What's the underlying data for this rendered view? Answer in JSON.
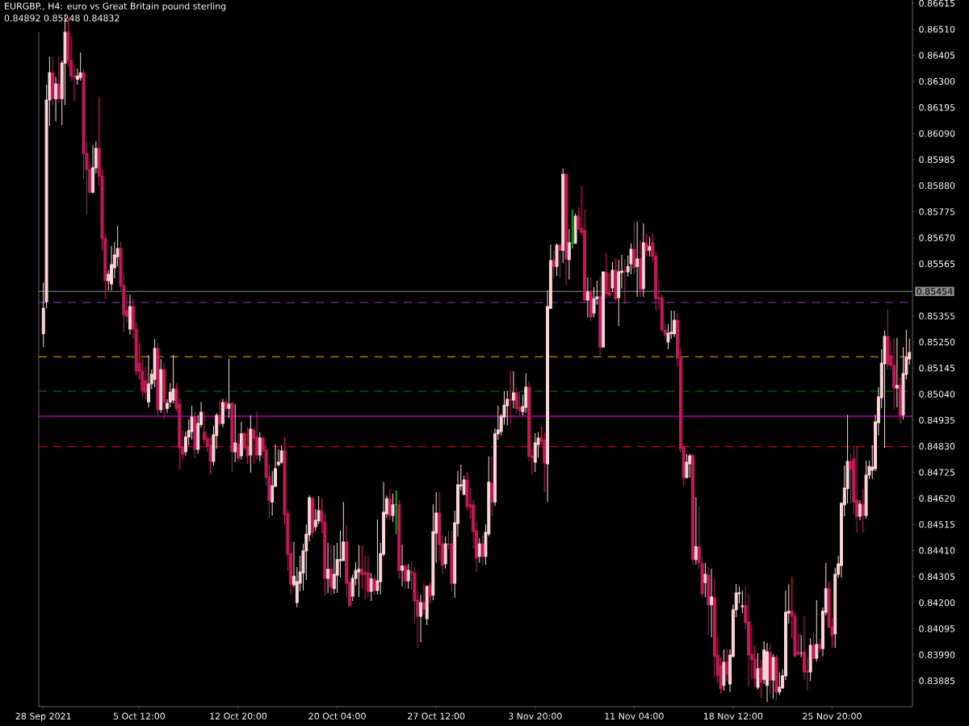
{
  "chart_data": {
    "type": "candlestick",
    "title": "EURGBP., H4:  euro vs Great Britain pound sterling",
    "subtitle": "0.84892 0.85248 0.84832",
    "categories": [
      "28 Sep 2021",
      null,
      null,
      null,
      null,
      null,
      null,
      null,
      null,
      null,
      null,
      null,
      null,
      null,
      null,
      null,
      null,
      null,
      null,
      null,
      null,
      null,
      null,
      null,
      null,
      null,
      null,
      null,
      null,
      null,
      null,
      "5 Oct 12:00",
      null,
      null,
      null,
      null,
      null,
      null,
      null,
      null,
      null,
      null,
      null,
      null,
      null,
      null,
      null,
      null,
      null,
      null,
      null,
      null,
      null,
      null,
      null,
      null,
      null,
      null,
      null,
      null,
      null,
      null,
      null,
      "12 Oct 20:00",
      null,
      null,
      null,
      null,
      null,
      null,
      null,
      null,
      null,
      null,
      null,
      null,
      null,
      null,
      null,
      null,
      null,
      null,
      null,
      null,
      null,
      null,
      null,
      null,
      null,
      null,
      null,
      null,
      null,
      null,
      null,
      "20 Oct 04:00",
      null,
      null,
      null,
      null,
      null,
      null,
      null,
      null,
      null,
      null,
      null,
      null,
      null,
      null,
      null,
      null,
      null,
      null,
      null,
      null,
      null,
      null,
      null,
      null,
      null,
      null,
      null,
      null,
      null,
      null,
      null,
      "27 Oct 12:00",
      null,
      null,
      null,
      null,
      null,
      null,
      null,
      null,
      null,
      null,
      null,
      null,
      null,
      null,
      null,
      null,
      null,
      null,
      null,
      null,
      null,
      null,
      null,
      null,
      null,
      null,
      null,
      null,
      null,
      null,
      null,
      "3 Nov 20:00",
      null,
      null,
      null,
      null,
      null,
      null,
      null,
      null,
      null,
      null,
      null,
      null,
      null,
      null,
      null,
      null,
      null,
      null,
      null,
      null,
      null,
      null,
      null,
      null,
      null,
      null,
      null,
      null,
      null,
      null,
      null,
      "11 Nov 04:00",
      null,
      null,
      null,
      null,
      null,
      null,
      null,
      null,
      null,
      null,
      null,
      null,
      null,
      null,
      null,
      null,
      null,
      null,
      null,
      null,
      null,
      null,
      null,
      null,
      null,
      null,
      null,
      null,
      null,
      null,
      null,
      "18 Nov 12:00",
      null,
      null,
      null,
      null,
      null,
      null,
      null,
      null,
      null,
      null,
      null,
      null,
      null,
      null,
      null,
      null,
      null,
      null,
      null,
      null,
      null,
      null,
      null,
      null,
      null,
      null,
      null,
      null,
      null,
      null,
      null,
      "25 Nov 20:00",
      null,
      null,
      null,
      null,
      null,
      null,
      null,
      null,
      null,
      null,
      null,
      null,
      null,
      null,
      null,
      null,
      null,
      null,
      null,
      null,
      null,
      null,
      null,
      null,
      null
    ],
    "ohlc": [
      [
        0.85283,
        0.8549,
        0.8523,
        0.85386
      ],
      [
        0.85412,
        0.86287,
        0.85386,
        0.86225
      ],
      [
        0.86225,
        0.864,
        0.86121,
        0.86335
      ],
      [
        0.86335,
        0.864,
        0.86205,
        0.86231
      ],
      [
        0.86231,
        0.86319,
        0.8614,
        0.8629
      ],
      [
        0.8629,
        0.864,
        0.86212,
        0.86231
      ],
      [
        0.86231,
        0.86384,
        0.86124,
        0.86374
      ],
      [
        0.86374,
        0.86569,
        0.86205,
        0.86498
      ],
      [
        0.86498,
        0.86556,
        0.86361,
        0.86384
      ],
      [
        0.86384,
        0.86482,
        0.86303,
        0.86322
      ],
      [
        0.86322,
        0.86368,
        0.86222,
        0.86316
      ],
      [
        0.86309,
        0.86352,
        0.86287,
        0.86322
      ],
      [
        0.86316,
        0.86417,
        0.86303,
        0.86335
      ],
      [
        0.86335,
        0.86352,
        0.85906,
        0.8601
      ],
      [
        0.8601,
        0.86059,
        0.85763,
        0.85945
      ],
      [
        0.85945,
        0.85978,
        0.85848,
        0.85854
      ],
      [
        0.85854,
        0.86043,
        0.85848,
        0.85952
      ],
      [
        0.85952,
        0.86059,
        0.85929,
        0.8603
      ],
      [
        0.8603,
        0.86238,
        0.8588,
        0.85919
      ],
      [
        0.85919,
        0.85945,
        0.8562,
        0.85666
      ],
      [
        0.85666,
        0.85685,
        0.85425,
        0.85497
      ],
      [
        0.85497,
        0.85539,
        0.85458,
        0.85523
      ],
      [
        0.85484,
        0.85637,
        0.85458,
        0.85562
      ],
      [
        0.85549,
        0.85653,
        0.85507,
        0.85601
      ],
      [
        0.85594,
        0.85718,
        0.85555,
        0.85627
      ],
      [
        0.85627,
        0.85653,
        0.85458,
        0.85477
      ],
      [
        0.85477,
        0.85523,
        0.85289,
        0.8536
      ],
      [
        0.85377,
        0.85442,
        0.85328,
        0.85354
      ],
      [
        0.85302,
        0.85442,
        0.85279,
        0.85393
      ],
      [
        0.85393,
        0.85425,
        0.85263,
        0.85302
      ],
      [
        0.85302,
        0.85328,
        0.85117,
        0.85133
      ],
      [
        0.85165,
        0.85247,
        0.851,
        0.85133
      ],
      [
        0.85133,
        0.85182,
        0.85029,
        0.85055
      ],
      [
        0.85094,
        0.85149,
        0.85019,
        0.85048
      ],
      [
        0.85009,
        0.85198,
        0.84987,
        0.85081
      ],
      [
        0.85081,
        0.85139,
        0.85061,
        0.8512
      ],
      [
        0.851,
        0.85263,
        0.85068,
        0.85224
      ],
      [
        0.85224,
        0.85247,
        0.84954,
        0.84977
      ],
      [
        0.84977,
        0.85182,
        0.84964,
        0.85139
      ],
      [
        0.85139,
        0.85165,
        0.84938,
        0.85009
      ],
      [
        0.84983,
        0.85019,
        0.84964,
        0.85003
      ],
      [
        0.85009,
        0.85084,
        0.84987,
        0.85048
      ],
      [
        0.85016,
        0.85198,
        0.85003,
        0.85061
      ],
      [
        0.85061,
        0.85084,
        0.8497,
        0.84983
      ],
      [
        0.85,
        0.85022,
        0.84737,
        0.84824
      ],
      [
        0.84828,
        0.84893,
        0.84776,
        0.84798
      ],
      [
        0.84808,
        0.84889,
        0.84792,
        0.84867
      ],
      [
        0.84867,
        0.84938,
        0.84834,
        0.84893
      ],
      [
        0.84889,
        0.84993,
        0.84857,
        0.84948
      ],
      [
        0.84948,
        0.8497,
        0.84782,
        0.84818
      ],
      [
        0.84818,
        0.84954,
        0.84801,
        0.84922
      ],
      [
        0.84918,
        0.85009,
        0.84906,
        0.84967
      ],
      [
        0.84886,
        0.8497,
        0.8484,
        0.84857
      ],
      [
        0.8486,
        0.84873,
        0.84808,
        0.84831
      ],
      [
        0.84834,
        0.84867,
        0.84717,
        0.84769
      ],
      [
        0.84769,
        0.84912,
        0.84753,
        0.84876
      ],
      [
        0.84873,
        0.84964,
        0.84821,
        0.84954
      ],
      [
        0.84954,
        0.85016,
        0.84912,
        0.84922
      ],
      [
        0.84922,
        0.85022,
        0.84906,
        0.85006
      ],
      [
        0.85006,
        0.85022,
        0.8497,
        0.84983
      ],
      [
        0.84983,
        0.85182,
        0.84944,
        0.85
      ],
      [
        0.85003,
        0.85009,
        0.84727,
        0.84808
      ],
      [
        0.84808,
        0.85,
        0.84766,
        0.84844
      ],
      [
        0.8484,
        0.84883,
        0.84766,
        0.84782
      ],
      [
        0.84792,
        0.84928,
        0.84776,
        0.8488
      ],
      [
        0.8488,
        0.84889,
        0.84815,
        0.84824
      ],
      [
        0.84828,
        0.84906,
        0.84759,
        0.84792
      ],
      [
        0.84795,
        0.84954,
        0.84724,
        0.84899
      ],
      [
        0.84896,
        0.84902,
        0.84759,
        0.84863
      ],
      [
        0.84867,
        0.8497,
        0.84776,
        0.84795
      ],
      [
        0.84795,
        0.84886,
        0.84769,
        0.84863
      ],
      [
        0.84863,
        0.84873,
        0.84782,
        0.84811
      ],
      [
        0.84815,
        0.84837,
        0.84671,
        0.84704
      ],
      [
        0.84707,
        0.84756,
        0.84541,
        0.8461
      ],
      [
        0.84606,
        0.8473,
        0.84551,
        0.84671
      ],
      [
        0.84668,
        0.84837,
        0.84668,
        0.8474
      ],
      [
        0.84756,
        0.84818,
        0.84749,
        0.84766
      ],
      [
        0.84766,
        0.84834,
        0.84759,
        0.84811
      ],
      [
        0.84811,
        0.84867,
        0.84515,
        0.84555
      ],
      [
        0.84558,
        0.84571,
        0.8433,
        0.84395
      ],
      [
        0.84398,
        0.84444,
        0.84233,
        0.84275
      ],
      [
        0.84272,
        0.84444,
        0.84262,
        0.84307
      ],
      [
        0.842,
        0.84343,
        0.84181,
        0.84285
      ],
      [
        0.84278,
        0.84389,
        0.84246,
        0.84324
      ],
      [
        0.8432,
        0.84437,
        0.84249,
        0.84408
      ],
      [
        0.84408,
        0.84515,
        0.84291,
        0.84476
      ],
      [
        0.84473,
        0.84632,
        0.84447,
        0.84623
      ],
      [
        0.84619,
        0.84626,
        0.8446,
        0.84483
      ],
      [
        0.84506,
        0.84577,
        0.8449,
        0.84532
      ],
      [
        0.84529,
        0.84629,
        0.84515,
        0.84571
      ],
      [
        0.84571,
        0.84619,
        0.8448,
        0.84525
      ],
      [
        0.84525,
        0.84558,
        0.8423,
        0.84298
      ],
      [
        0.84298,
        0.84441,
        0.84239,
        0.84334
      ],
      [
        0.84334,
        0.84434,
        0.8423,
        0.84262
      ],
      [
        0.84256,
        0.84431,
        0.84236,
        0.84314
      ],
      [
        0.84311,
        0.84441,
        0.84239,
        0.84373
      ],
      [
        0.84369,
        0.8449,
        0.84301,
        0.84373
      ],
      [
        0.84369,
        0.84606,
        0.84369,
        0.84444
      ],
      [
        0.84444,
        0.84512,
        0.8422,
        0.84278
      ],
      [
        0.84281,
        0.84301,
        0.84187,
        0.84187
      ],
      [
        0.84226,
        0.84314,
        0.84207,
        0.84298
      ],
      [
        0.84298,
        0.84363,
        0.84269,
        0.8433
      ],
      [
        0.84324,
        0.84431,
        0.84223,
        0.84334
      ],
      [
        0.84334,
        0.84431,
        0.84256,
        0.84314
      ],
      [
        0.8432,
        0.84389,
        0.84213,
        0.84314
      ],
      [
        0.8432,
        0.84386,
        0.84223,
        0.84246
      ],
      [
        0.84246,
        0.8432,
        0.84207,
        0.84295
      ],
      [
        0.84295,
        0.84314,
        0.84233,
        0.84249
      ],
      [
        0.84249,
        0.84535,
        0.84233,
        0.84288
      ],
      [
        0.84285,
        0.84441,
        0.84233,
        0.84398
      ],
      [
        0.84395,
        0.84685,
        0.84386,
        0.84564
      ],
      [
        0.84558,
        0.84632,
        0.84541,
        0.84619
      ],
      [
        0.84619,
        0.84659,
        0.84532,
        0.84551
      ],
      [
        0.84551,
        0.84639,
        0.84525,
        0.84594
      ],
      [
        0.84594,
        0.84652,
        0.84477,
        0.84594
      ],
      [
        0.84594,
        0.84613,
        0.84295,
        0.8433
      ],
      [
        0.8433,
        0.84434,
        0.84265,
        0.84347
      ],
      [
        0.84347,
        0.84356,
        0.84256,
        0.84288
      ],
      [
        0.84288,
        0.84356,
        0.84256,
        0.8433
      ],
      [
        0.84324,
        0.84366,
        0.84252,
        0.8432
      ],
      [
        0.8432,
        0.84343,
        0.84116,
        0.84207
      ],
      [
        0.8421,
        0.84249,
        0.84018,
        0.84145
      ],
      [
        0.84145,
        0.84233,
        0.84041,
        0.842
      ],
      [
        0.842,
        0.84281,
        0.84152,
        0.84174
      ],
      [
        0.84135,
        0.84269,
        0.84109,
        0.84265
      ],
      [
        0.84269,
        0.84281,
        0.84197,
        0.84226
      ],
      [
        0.8423,
        0.84597,
        0.8421,
        0.84486
      ],
      [
        0.8448,
        0.84645,
        0.84363,
        0.84561
      ],
      [
        0.84561,
        0.84645,
        0.84369,
        0.84434
      ],
      [
        0.84437,
        0.84473,
        0.84314,
        0.8435
      ],
      [
        0.84356,
        0.84467,
        0.84337,
        0.84437
      ],
      [
        0.84437,
        0.8449,
        0.84415,
        0.84434
      ],
      [
        0.84437,
        0.8449,
        0.84243,
        0.84278
      ],
      [
        0.84278,
        0.84571,
        0.8422,
        0.84522
      ],
      [
        0.84519,
        0.8473,
        0.84467,
        0.84675
      ],
      [
        0.84671,
        0.84756,
        0.84652,
        0.84675
      ],
      [
        0.84636,
        0.84711,
        0.84636,
        0.84694
      ],
      [
        0.84694,
        0.84724,
        0.84571,
        0.84587
      ],
      [
        0.84594,
        0.84662,
        0.84538,
        0.84587
      ],
      [
        0.84594,
        0.84613,
        0.84418,
        0.84486
      ],
      [
        0.8449,
        0.84529,
        0.84324,
        0.84379
      ],
      [
        0.84386,
        0.8446,
        0.8436,
        0.84437
      ],
      [
        0.84437,
        0.8447,
        0.84353,
        0.84386
      ],
      [
        0.84386,
        0.84515,
        0.84353,
        0.84483
      ],
      [
        0.84477,
        0.84789,
        0.84467,
        0.84685
      ],
      [
        0.84681,
        0.84789,
        0.84548,
        0.84606
      ],
      [
        0.84606,
        0.84902,
        0.8459,
        0.8488
      ],
      [
        0.8488,
        0.84993,
        0.84857,
        0.84896
      ],
      [
        0.84889,
        0.84961,
        0.84873,
        0.84951
      ],
      [
        0.84948,
        0.85052,
        0.84918,
        0.84996
      ],
      [
        0.84993,
        0.85052,
        0.84915,
        0.85019
      ],
      [
        0.85019,
        0.85133,
        0.84922,
        0.85016
      ],
      [
        0.85016,
        0.85133,
        0.84983,
        0.85045
      ],
      [
        0.85045,
        0.85068,
        0.84961,
        0.84983
      ],
      [
        0.84987,
        0.85052,
        0.84954,
        0.84974
      ],
      [
        0.8497,
        0.85039,
        0.84954,
        0.8499
      ],
      [
        0.84987,
        0.85123,
        0.84964,
        0.85068
      ],
      [
        0.85068,
        0.85091,
        0.84769,
        0.84789
      ],
      [
        0.84792,
        0.84818,
        0.84717,
        0.84785
      ],
      [
        0.84766,
        0.84883,
        0.84727,
        0.84844
      ],
      [
        0.84837,
        0.84886,
        0.84785,
        0.84863
      ],
      [
        0.84863,
        0.84909,
        0.84834,
        0.8485
      ],
      [
        0.84854,
        0.84886,
        0.84645,
        0.84762
      ],
      [
        0.84759,
        0.85458,
        0.84606,
        0.85393
      ],
      [
        0.85386,
        0.85643,
        0.85383,
        0.85578
      ],
      [
        0.85578,
        0.85617,
        0.85507,
        0.85555
      ],
      [
        0.85555,
        0.85647,
        0.85516,
        0.8564
      ],
      [
        0.8564,
        0.85647,
        0.85507,
        0.8562
      ],
      [
        0.8562,
        0.85949,
        0.85568,
        0.85926
      ],
      [
        0.85926,
        0.85929,
        0.85481,
        0.85585
      ],
      [
        0.85582,
        0.85705,
        0.85503,
        0.8565
      ],
      [
        0.8565,
        0.85783,
        0.85627,
        0.8565
      ],
      [
        0.85647,
        0.85767,
        0.85647,
        0.85757
      ],
      [
        0.85757,
        0.85793,
        0.85702,
        0.85705
      ],
      [
        0.85708,
        0.8588,
        0.85679,
        0.85692
      ],
      [
        0.85699,
        0.85783,
        0.85412,
        0.85419
      ],
      [
        0.85419,
        0.8551,
        0.85348,
        0.85452
      ],
      [
        0.85452,
        0.8551,
        0.85335,
        0.85351
      ],
      [
        0.85367,
        0.85471,
        0.85351,
        0.85425
      ],
      [
        0.85425,
        0.85497,
        0.854,
        0.85432
      ],
      [
        0.85432,
        0.85513,
        0.85198,
        0.8523
      ],
      [
        0.8523,
        0.85533,
        0.8523,
        0.85533
      ],
      [
        0.8553,
        0.85608,
        0.85425,
        0.85445
      ],
      [
        0.85448,
        0.85526,
        0.85432,
        0.85439
      ],
      [
        0.85468,
        0.85572,
        0.85452,
        0.85539
      ],
      [
        0.85539,
        0.85588,
        0.85416,
        0.85425
      ],
      [
        0.85429,
        0.85582,
        0.85315,
        0.85533
      ],
      [
        0.8553,
        0.85601,
        0.85465,
        0.85536
      ],
      [
        0.85536,
        0.85585,
        0.85403,
        0.85533
      ],
      [
        0.85533,
        0.85598,
        0.85513,
        0.85555
      ],
      [
        0.85565,
        0.85647,
        0.85523,
        0.85624
      ],
      [
        0.85624,
        0.85731,
        0.85523,
        0.85549
      ],
      [
        0.85555,
        0.85734,
        0.85432,
        0.85585
      ],
      [
        0.85585,
        0.8566,
        0.85432,
        0.85461
      ],
      [
        0.85465,
        0.85728,
        0.85432,
        0.8565
      ],
      [
        0.85647,
        0.85686,
        0.85595,
        0.85617
      ],
      [
        0.8562,
        0.85673,
        0.85595,
        0.85634
      ],
      [
        0.8565,
        0.85686,
        0.85572,
        0.85595
      ],
      [
        0.85595,
        0.85614,
        0.85377,
        0.85425
      ],
      [
        0.85429,
        0.85503,
        0.8538,
        0.85425
      ],
      [
        0.85429,
        0.85442,
        0.85289,
        0.85299
      ],
      [
        0.85299,
        0.85322,
        0.85263,
        0.85279
      ],
      [
        0.8525,
        0.85322,
        0.85221,
        0.85286
      ],
      [
        0.85283,
        0.85377,
        0.85263,
        0.85289
      ],
      [
        0.85283,
        0.85377,
        0.8527,
        0.85338
      ],
      [
        0.85338,
        0.85367,
        0.85149,
        0.85185
      ],
      [
        0.85185,
        0.85224,
        0.84808,
        0.84821
      ],
      [
        0.84828,
        0.84834,
        0.84671,
        0.84704
      ],
      [
        0.84704,
        0.84798,
        0.84701,
        0.84766
      ],
      [
        0.84759,
        0.84798,
        0.84704,
        0.84792
      ],
      [
        0.84792,
        0.84798,
        0.84353,
        0.84373
      ],
      [
        0.84373,
        0.84626,
        0.84353,
        0.84425
      ],
      [
        0.84425,
        0.84587,
        0.84337,
        0.8436
      ],
      [
        0.84356,
        0.84386,
        0.84223,
        0.84236
      ],
      [
        0.84281,
        0.8436,
        0.84223,
        0.84314
      ],
      [
        0.84311,
        0.84343,
        0.8407,
        0.84191
      ],
      [
        0.84191,
        0.84337,
        0.8406,
        0.84223
      ],
      [
        0.8422,
        0.84295,
        0.83898,
        0.83983
      ],
      [
        0.83989,
        0.8406,
        0.83875,
        0.83905
      ],
      [
        0.83947,
        0.83979,
        0.83833,
        0.83853
      ],
      [
        0.83866,
        0.84012,
        0.83846,
        0.8396
      ],
      [
        0.8396,
        0.84012,
        0.83882,
        0.83911
      ],
      [
        0.83872,
        0.84012,
        0.8384,
        0.83989
      ],
      [
        0.83983,
        0.84191,
        0.83979,
        0.84171
      ],
      [
        0.84171,
        0.84275,
        0.84142,
        0.84239
      ],
      [
        0.84236,
        0.84265,
        0.84197,
        0.84239
      ],
      [
        0.84184,
        0.84249,
        0.84158,
        0.84187
      ],
      [
        0.84187,
        0.84265,
        0.84093,
        0.84119
      ],
      [
        0.84122,
        0.84236,
        0.83862,
        0.83989
      ],
      [
        0.83992,
        0.84109,
        0.83891,
        0.8397
      ],
      [
        0.83973,
        0.84028,
        0.83859,
        0.83895
      ],
      [
        0.83859,
        0.83996,
        0.83849,
        0.83934
      ],
      [
        0.83937,
        0.8397,
        0.83817,
        0.83879
      ],
      [
        0.83891,
        0.84044,
        0.83872,
        0.84009
      ],
      [
        0.83866,
        0.84038,
        0.838,
        0.84002
      ],
      [
        0.83999,
        0.84031,
        0.83833,
        0.83888
      ],
      [
        0.83888,
        0.83992,
        0.83814,
        0.83979
      ],
      [
        0.83979,
        0.83989,
        0.83807,
        0.8384
      ],
      [
        0.8384,
        0.83918,
        0.83827,
        0.83859
      ],
      [
        0.83856,
        0.83931,
        0.83856,
        0.83905
      ],
      [
        0.83905,
        0.84249,
        0.83888,
        0.84161
      ],
      [
        0.84158,
        0.84275,
        0.84116,
        0.84165
      ],
      [
        0.84165,
        0.84304,
        0.84057,
        0.84145
      ],
      [
        0.84145,
        0.84158,
        0.83979,
        0.83986
      ],
      [
        0.84002,
        0.84077,
        0.83989,
        0.83992
      ],
      [
        0.83996,
        0.8407,
        0.83979,
        0.83996
      ],
      [
        0.84002,
        0.84145,
        0.83888,
        0.83921
      ],
      [
        0.83924,
        0.83983,
        0.83846,
        0.83921
      ],
      [
        0.83921,
        0.84057,
        0.83885,
        0.84028
      ],
      [
        0.84028,
        0.8408,
        0.8397,
        0.83976
      ],
      [
        0.83976,
        0.8421,
        0.83963,
        0.84031
      ],
      [
        0.84031,
        0.84054,
        0.83999,
        0.84015
      ],
      [
        0.84015,
        0.84181,
        0.83983,
        0.84165
      ],
      [
        0.84161,
        0.8436,
        0.84148,
        0.84256
      ],
      [
        0.84256,
        0.84285,
        0.841,
        0.841
      ],
      [
        0.84103,
        0.84139,
        0.84018,
        0.84067
      ],
      [
        0.84074,
        0.8434,
        0.84018,
        0.84314
      ],
      [
        0.84314,
        0.84389,
        0.84301,
        0.84356
      ],
      [
        0.8435,
        0.84606,
        0.84301,
        0.846
      ],
      [
        0.84594,
        0.84753,
        0.84548,
        0.84662
      ],
      [
        0.84659,
        0.84957,
        0.846,
        0.84769
      ],
      [
        0.84769,
        0.84798,
        0.846,
        0.84737
      ],
      [
        0.84779,
        0.84834,
        0.84555,
        0.84606
      ],
      [
        0.84613,
        0.84831,
        0.84483,
        0.84548
      ],
      [
        0.84548,
        0.84613,
        0.84532,
        0.84597
      ],
      [
        0.84594,
        0.84659,
        0.84483,
        0.84551
      ],
      [
        0.84551,
        0.84772,
        0.84538,
        0.84714
      ],
      [
        0.84714,
        0.84772,
        0.84698,
        0.84749
      ],
      [
        0.84733,
        0.84834,
        0.84698,
        0.84746
      ],
      [
        0.8474,
        0.84957,
        0.8473,
        0.84928
      ],
      [
        0.84925,
        0.85068,
        0.84873,
        0.85029
      ],
      [
        0.85026,
        0.85221,
        0.84983,
        0.85165
      ],
      [
        0.85162,
        0.85296,
        0.84824,
        0.85273
      ],
      [
        0.85273,
        0.8538,
        0.85139,
        0.85159
      ],
      [
        0.85195,
        0.85257,
        0.85139,
        0.85156
      ],
      [
        0.85156,
        0.85266,
        0.8498,
        0.85065
      ],
      [
        0.85065,
        0.85266,
        0.84987,
        0.85075
      ],
      [
        0.85075,
        0.85107,
        0.84922,
        0.84957
      ],
      [
        0.84957,
        0.8523,
        0.84938,
        0.85123
      ],
      [
        0.8512,
        0.85299,
        0.851,
        0.85188
      ],
      [
        0.85182,
        0.85263,
        0.85159,
        0.85208
      ]
    ],
    "colors": [
      "#ffd6d6",
      "#ffd6d6",
      "#ffd6d6",
      "#c8185a",
      "#ffd6d6",
      "#c8185a",
      "#ffd6d6",
      "#ffd6d6",
      "#c8185a",
      "#c8185a",
      "#c8185a",
      "#ffd6d6",
      "#ffd6d6",
      "#c8185a",
      "#c8185a",
      "#c8185a",
      "#ffd6d6",
      "#ffd6d6",
      "#c8185a",
      "#c8185a",
      "#c8185a",
      "#ffd6d6",
      "#ffd6d6",
      "#ffd6d6",
      "#ffd6d6",
      "#c8185a",
      "#c8185a",
      "#c8185a",
      "#ffd6d6",
      "#c8185a",
      "#c8185a",
      "#c8185a",
      "#c8185a",
      "#c8185a",
      "#ffd6d6",
      "#ffd6d6",
      "#ffd6d6",
      "#c8185a",
      "#ffd6d6",
      "#c8185a",
      "#ffd6d6",
      "#ffd6d6",
      "#ffd6d6",
      "#c8185a",
      "#c8185a",
      "#c8185a",
      "#ffd6d6",
      "#ffd6d6",
      "#ffd6d6",
      "#c8185a",
      "#ffd6d6",
      "#ffd6d6",
      "#c8185a",
      "#c8185a",
      "#c8185a",
      "#ffd6d6",
      "#ffd6d6",
      "#c8185a",
      "#ffd6d6",
      "#c8185a",
      "#ffd6d6",
      "#c8185a",
      "#ffd6d6",
      "#c8185a",
      "#ffd6d6",
      "#c8185a",
      "#c8185a",
      "#ffd6d6",
      "#c8185a",
      "#c8185a",
      "#ffd6d6",
      "#c8185a",
      "#c8185a",
      "#c8185a",
      "#ffd6d6",
      "#ffd6d6",
      "#ffd6d6",
      "#ffd6d6",
      "#c8185a",
      "#c8185a",
      "#c8185a",
      "#ffd6d6",
      "#ffd6d6",
      "#ffd6d6",
      "#ffd6d6",
      "#ffd6d6",
      "#ffd6d6",
      "#c8185a",
      "#ffd6d6",
      "#ffd6d6",
      "#c8185a",
      "#c8185a",
      "#ffd6d6",
      "#c8185a",
      "#ffd6d6",
      "#ffd6d6",
      "#ffd6d6",
      "#ffd6d6",
      "#c8185a",
      "#c8185a",
      "#ffd6d6",
      "#ffd6d6",
      "#ffd6d6",
      "#c8185a",
      "#c8185a",
      "#c8185a",
      "#ffd6d6",
      "#c8185a",
      "#ffd6d6",
      "#ffd6d6",
      "#ffd6d6",
      "#ffd6d6",
      "#c8185a",
      "#ffd6d6",
      "#00ff00",
      "#c8185a",
      "#ffd6d6",
      "#c8185a",
      "#ffd6d6",
      "#c8185a",
      "#c8185a",
      "#c8185a",
      "#ffd6d6",
      "#c8185a",
      "#ffd6d6",
      "#c8185a",
      "#ffd6d6",
      "#ffd6d6",
      "#c8185a",
      "#c8185a",
      "#ffd6d6",
      "#c8185a",
      "#c8185a",
      "#ffd6d6",
      "#ffd6d6",
      "#ffd6d6",
      "#ffd6d6",
      "#c8185a",
      "#c8185a",
      "#c8185a",
      "#c8185a",
      "#ffd6d6",
      "#c8185a",
      "#ffd6d6",
      "#ffd6d6",
      "#c8185a",
      "#ffd6d6",
      "#ffd6d6",
      "#ffd6d6",
      "#ffd6d6",
      "#ffd6d6",
      "#c8185a",
      "#ffd6d6",
      "#c8185a",
      "#c8185a",
      "#ffd6d6",
      "#ffd6d6",
      "#c8185a",
      "#c8185a",
      "#ffd6d6",
      "#ffd6d6",
      "#c8185a",
      "#c8185a",
      "#ffd6d6",
      "#ffd6d6",
      "#c8185a",
      "#ffd6d6",
      "#c8185a",
      "#ffd6d6",
      "#c8185a",
      "#ffd6d6",
      "#00ff00",
      "#ffd6d6",
      "#c8185a",
      "#c8185a",
      "#c8185a",
      "#ffd6d6",
      "#c8185a",
      "#ffd6d6",
      "#ffd6d6",
      "#c8185a",
      "#ffd6d6",
      "#c8185a",
      "#c8185a",
      "#ffd6d6",
      "#c8185a",
      "#ffd6d6",
      "#ffd6d6",
      "#c8185a",
      "#ffd6d6",
      "#ffd6d6",
      "#c8185a",
      "#ffd6d6",
      "#c8185a",
      "#ffd6d6",
      "#c8185a",
      "#ffd6d6",
      "#c8185a",
      "#c8185a",
      "#c8185a",
      "#c8185a",
      "#c8185a",
      "#ffd6d6",
      "#ffd6d6",
      "#ffd6d6",
      "#c8185a",
      "#c8185a",
      "#c8185a",
      "#ffd6d6",
      "#ffd6d6",
      "#c8185a",
      "#ffd6d6",
      "#c8185a",
      "#c8185a",
      "#ffd6d6",
      "#c8185a",
      "#ffd6d6",
      "#c8185a",
      "#c8185a",
      "#c8185a",
      "#ffd6d6",
      "#c8185a",
      "#ffd6d6",
      "#ffd6d6",
      "#ffd6d6",
      "#ffd6d6",
      "#ffd6d6",
      "#c8185a",
      "#c8185a",
      "#c8185a",
      "#c8185a",
      "#ffd6d6",
      "#c8185a",
      "#ffd6d6",
      "#ffd6d6",
      "#c8185a",
      "#ffd6d6",
      "#c8185a",
      "#ffd6d6",
      "#ffd6d6",
      "#ffd6d6",
      "#ffd6d6",
      "#c8185a",
      "#c8185a",
      "#c8185a",
      "#ffd6d6",
      "#c8185a",
      "#c8185a",
      "#ffd6d6",
      "#c8185a",
      "#ffd6d6",
      "#c8185a",
      "#ffd6d6",
      "#ffd6d6",
      "#c8185a",
      "#c8185a",
      "#ffd6d6",
      "#ffd6d6",
      "#ffd6d6",
      "#ffd6d6",
      "#ffd6d6",
      "#c8185a",
      "#c8185a",
      "#c8185a",
      "#ffd6d6",
      "#c8185a",
      "#ffd6d6",
      "#ffd6d6",
      "#ffd6d6",
      "#ffd6d6",
      "#ffd6d6",
      "#ffd6d6",
      "#ffd6d6",
      "#c8185a",
      "#c8185a",
      "#c8185a",
      "#ffd6d6",
      "#c8185a",
      "#ffd6d6",
      "#ffd6d6",
      "#ffd6d6"
    ],
    "ylim": [
      0.83781,
      0.86628
    ],
    "yticks": [
      0.86615,
      {
        "value": 0.8651,
        "label": "0.86510"
      },
      0.86405,
      {
        "value": 0.863,
        "label": "0.86300"
      },
      0.86195,
      {
        "value": 0.8609,
        "label": "0.86090"
      },
      0.85985,
      {
        "value": 0.8588,
        "label": "0.85880"
      },
      0.85775,
      {
        "value": 0.8567,
        "label": "0.85670"
      },
      0.85565,
      0.85355,
      {
        "value": 0.8525,
        "label": "0.85250"
      },
      0.85145,
      {
        "value": 0.8504,
        "label": "0.85040"
      },
      0.84935,
      {
        "value": 0.8483,
        "label": "0.84830"
      },
      0.84725,
      {
        "value": 0.8462,
        "label": "0.84620"
      },
      0.84515,
      {
        "value": 0.8441,
        "label": "0.84410"
      },
      0.84305,
      {
        "value": 0.842,
        "label": "0.84200"
      },
      0.84095,
      {
        "value": 0.8399,
        "label": "0.83990"
      },
      0.83885
    ],
    "ref_lines": [
      {
        "axis": "y",
        "value": 0.85454,
        "label": "0.85454",
        "color": "#8c8c8c",
        "line_style": "solid"
      },
      {
        "axis": "y",
        "value": 0.85409,
        "color": "#9932cc",
        "line_style": "dashed"
      },
      {
        "axis": "y",
        "value": 0.85191,
        "color": "#ffa500",
        "line_style": "dashed"
      },
      {
        "axis": "y",
        "value": 0.85052,
        "color": "#008000",
        "line_style": "dashed"
      },
      {
        "axis": "y",
        "value": 0.84951,
        "color": "#ff00ff",
        "line_style": "solid"
      },
      {
        "axis": "y",
        "value": 0.84828,
        "color": "#ff0000",
        "line_style": "dashed"
      }
    ],
    "grid": false
  }
}
